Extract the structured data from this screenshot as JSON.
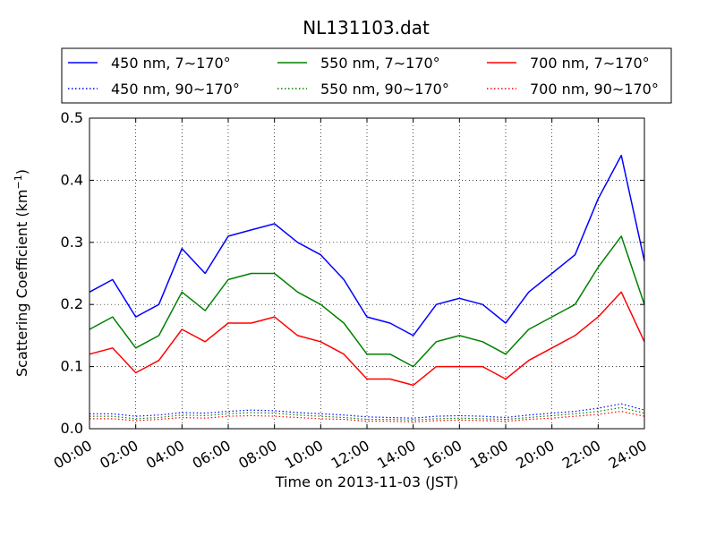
{
  "chart_data": {
    "type": "line",
    "title": "NL131103.dat",
    "xlabel": "Time on 2013-11-03 (JST)",
    "ylabel_main": "Scattering Coefficient (km",
    "ylabel_sup": "−1",
    "ylabel_end": ")",
    "x_ticks": [
      "00:00",
      "02:00",
      "04:00",
      "06:00",
      "08:00",
      "10:00",
      "12:00",
      "14:00",
      "16:00",
      "18:00",
      "20:00",
      "22:00",
      "24:00"
    ],
    "y_ticks": [
      "0.0",
      "0.1",
      "0.2",
      "0.3",
      "0.4",
      "0.5"
    ],
    "xlim_hours": [
      0,
      24
    ],
    "ylim": [
      0,
      0.5
    ],
    "grid": true,
    "legend_position": "top",
    "x_hours": [
      0,
      1,
      2,
      3,
      4,
      5,
      6,
      7,
      8,
      9,
      10,
      11,
      12,
      13,
      14,
      15,
      16,
      17,
      18,
      19,
      20,
      21,
      22,
      23,
      24
    ],
    "series": [
      {
        "name": "450 nm, 7∼170°",
        "color": "#0000ff",
        "style": "solid",
        "values": [
          0.22,
          0.24,
          0.18,
          0.2,
          0.29,
          0.25,
          0.31,
          0.32,
          0.33,
          0.3,
          0.28,
          0.24,
          0.18,
          0.17,
          0.15,
          0.2,
          0.21,
          0.2,
          0.17,
          0.22,
          0.25,
          0.28,
          0.37,
          0.44,
          0.27
        ]
      },
      {
        "name": "550 nm, 7∼170°",
        "color": "#008000",
        "style": "solid",
        "values": [
          0.16,
          0.18,
          0.13,
          0.15,
          0.22,
          0.19,
          0.24,
          0.25,
          0.25,
          0.22,
          0.2,
          0.17,
          0.12,
          0.12,
          0.1,
          0.14,
          0.15,
          0.14,
          0.12,
          0.16,
          0.18,
          0.2,
          0.26,
          0.31,
          0.2
        ]
      },
      {
        "name": "700 nm, 7∼170°",
        "color": "#ff0000",
        "style": "solid",
        "values": [
          0.12,
          0.13,
          0.09,
          0.11,
          0.16,
          0.14,
          0.17,
          0.17,
          0.18,
          0.15,
          0.14,
          0.12,
          0.08,
          0.08,
          0.07,
          0.1,
          0.1,
          0.1,
          0.08,
          0.11,
          0.13,
          0.15,
          0.18,
          0.22,
          0.14
        ]
      },
      {
        "name": "450 nm, 90∼170°",
        "color": "#0000ff",
        "style": "dotted",
        "values": [
          0.024,
          0.024,
          0.02,
          0.022,
          0.026,
          0.025,
          0.028,
          0.03,
          0.029,
          0.026,
          0.024,
          0.022,
          0.019,
          0.018,
          0.017,
          0.02,
          0.021,
          0.02,
          0.018,
          0.022,
          0.025,
          0.028,
          0.033,
          0.04,
          0.03
        ]
      },
      {
        "name": "550 nm, 90∼170°",
        "color": "#008000",
        "style": "dotted",
        "values": [
          0.02,
          0.02,
          0.016,
          0.018,
          0.022,
          0.021,
          0.024,
          0.026,
          0.025,
          0.022,
          0.02,
          0.018,
          0.015,
          0.015,
          0.014,
          0.016,
          0.017,
          0.016,
          0.015,
          0.018,
          0.021,
          0.024,
          0.028,
          0.034,
          0.025
        ]
      },
      {
        "name": "700 nm, 90∼170°",
        "color": "#ff0000",
        "style": "dotted",
        "values": [
          0.016,
          0.016,
          0.013,
          0.015,
          0.018,
          0.017,
          0.02,
          0.021,
          0.02,
          0.018,
          0.016,
          0.015,
          0.012,
          0.012,
          0.011,
          0.013,
          0.014,
          0.013,
          0.012,
          0.015,
          0.017,
          0.02,
          0.023,
          0.028,
          0.02
        ]
      }
    ]
  }
}
